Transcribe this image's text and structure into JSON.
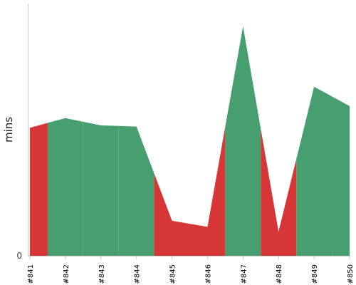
{
  "chart_data": {
    "type": "area",
    "ylabel": "mins",
    "xlabel": "",
    "title": "",
    "categories": [
      "#841",
      "#842",
      "#843",
      "#844",
      "#845",
      "#846",
      "#847",
      "#848",
      "#849",
      "#850"
    ],
    "values": [
      53,
      57,
      54,
      53.5,
      14.5,
      12,
      95,
      10,
      70,
      62
    ],
    "status": [
      "fail",
      "pass",
      "pass",
      "pass",
      "fail",
      "fail",
      "pass",
      "fail",
      "pass",
      "pass"
    ],
    "y_ticks": [
      "0"
    ],
    "ylim": [
      0,
      100
    ],
    "grid": false,
    "colors": {
      "pass": "#479f6f",
      "fail": "#d73636",
      "axis": "#cccccc"
    }
  }
}
